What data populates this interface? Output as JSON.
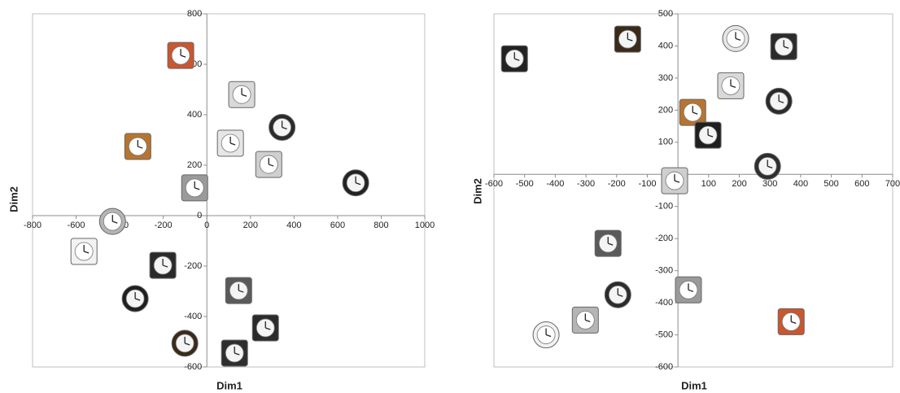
{
  "chart_data": [
    {
      "type": "scatter",
      "x_label": "Dim1",
      "y_label": "Dim2",
      "x": [
        -120,
        160,
        345,
        108,
        284,
        683,
        -317,
        -56,
        -433,
        -564,
        -202,
        -329,
        146,
        269,
        -101,
        127
      ],
      "y": [
        635,
        480,
        350,
        287,
        203,
        130,
        274,
        110,
        -23,
        -142,
        -197,
        -329,
        -297,
        -445,
        -506,
        -545
      ],
      "colors": [
        "#c9572f",
        "#d9d9d9",
        "#2b2b2b",
        "#e6e6e6",
        "#cfcfcf",
        "#222222",
        "#b8742e",
        "#9a9a9a",
        "#b5b5b5",
        "#f2f2f2",
        "#2a2a2a",
        "#1f1f1f",
        "#5a5a5a",
        "#2b2b2b",
        "#3a2a1a",
        "#2e2e2e"
      ],
      "xlim": [
        -800,
        1000
      ],
      "xticks": [
        -800,
        -600,
        -400,
        -200,
        0,
        200,
        400,
        600,
        800,
        1000
      ],
      "ylim": [
        -600,
        800
      ],
      "yticks": [
        -600,
        -400,
        -200,
        0,
        200,
        400,
        600,
        800
      ]
    },
    {
      "type": "scatter",
      "x_label": "Dim1",
      "y_label": "Dim2",
      "x": [
        -533,
        -164,
        188,
        345,
        172,
        329,
        48,
        98,
        292,
        -11,
        -228,
        -196,
        34,
        -302,
        -430,
        369
      ],
      "y": [
        360,
        421,
        423,
        398,
        276,
        228,
        193,
        122,
        25,
        -20,
        -215,
        -375,
        -360,
        -454,
        -500,
        -459
      ],
      "colors": [
        "#222222",
        "#3a2a1a",
        "#e6e6e6",
        "#2b2b2b",
        "#d9d9d9",
        "#2a2a2a",
        "#b8742e",
        "#1f1f1f",
        "#2e2e2e",
        "#cfcfcf",
        "#5a5a5a",
        "#2b2b2b",
        "#9a9a9a",
        "#b5b5b5",
        "#f2f2f2",
        "#c9572f"
      ],
      "xlim": [
        -600,
        700
      ],
      "xticks": [
        -600,
        -500,
        -400,
        -300,
        -200,
        -100,
        0,
        100,
        200,
        300,
        400,
        500,
        600,
        700
      ],
      "ylim": [
        -600,
        500
      ],
      "yticks": [
        -600,
        -500,
        -400,
        -300,
        -200,
        -100,
        0,
        100,
        200,
        300,
        400,
        500
      ]
    }
  ]
}
